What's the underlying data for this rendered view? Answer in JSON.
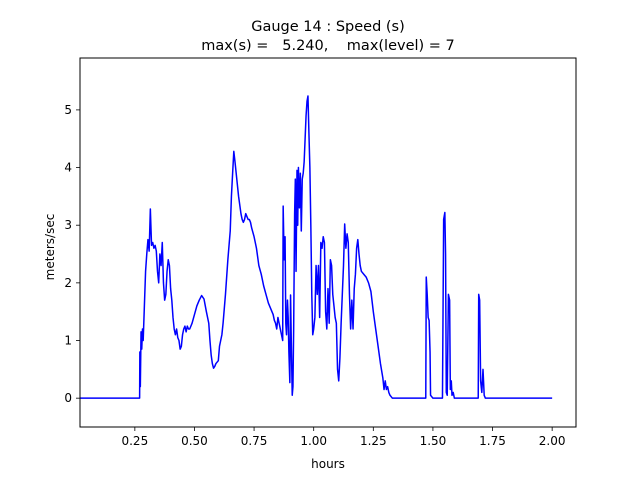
{
  "chart_data": {
    "type": "line",
    "title_line1": "Gauge 14 : Speed (s)",
    "title_line2": "max(s) =   5.240,    max(level) = 7",
    "xlabel": "hours",
    "ylabel": "meters/sec",
    "xlim": [
      0.02,
      2.1
    ],
    "ylim": [
      -0.5,
      5.9
    ],
    "x_ticks": [
      0.25,
      0.5,
      0.75,
      1.0,
      1.25,
      1.5,
      1.75,
      2.0
    ],
    "x_tick_labels": [
      "0.25",
      "0.50",
      "0.75",
      "1.00",
      "1.25",
      "1.50",
      "1.75",
      "2.00"
    ],
    "y_ticks": [
      0,
      1,
      2,
      3,
      4,
      5
    ],
    "y_tick_labels": [
      "0",
      "1",
      "2",
      "3",
      "4",
      "5"
    ],
    "grid": false,
    "line_color": "#0000ff",
    "series": [
      {
        "points": [
          [
            0.02,
            0
          ],
          [
            0.27,
            0
          ],
          [
            0.271,
            0.8
          ],
          [
            0.273,
            0.2
          ],
          [
            0.276,
            1.15
          ],
          [
            0.279,
            0.85
          ],
          [
            0.282,
            1.2
          ],
          [
            0.285,
            1.0
          ],
          [
            0.29,
            1.6
          ],
          [
            0.295,
            2.2
          ],
          [
            0.3,
            2.5
          ],
          [
            0.305,
            2.75
          ],
          [
            0.31,
            2.55
          ],
          [
            0.315,
            3.28
          ],
          [
            0.32,
            2.65
          ],
          [
            0.325,
            2.7
          ],
          [
            0.33,
            2.6
          ],
          [
            0.335,
            2.65
          ],
          [
            0.34,
            2.55
          ],
          [
            0.345,
            2.2
          ],
          [
            0.35,
            2.0
          ],
          [
            0.355,
            2.5
          ],
          [
            0.36,
            2.3
          ],
          [
            0.365,
            2.7
          ],
          [
            0.37,
            2.0
          ],
          [
            0.375,
            1.7
          ],
          [
            0.38,
            1.8
          ],
          [
            0.385,
            2.2
          ],
          [
            0.39,
            2.4
          ],
          [
            0.395,
            2.3
          ],
          [
            0.4,
            1.9
          ],
          [
            0.405,
            1.7
          ],
          [
            0.41,
            1.4
          ],
          [
            0.415,
            1.2
          ],
          [
            0.42,
            1.1
          ],
          [
            0.425,
            1.2
          ],
          [
            0.43,
            1.05
          ],
          [
            0.435,
            1.0
          ],
          [
            0.44,
            0.85
          ],
          [
            0.445,
            0.9
          ],
          [
            0.45,
            1.1
          ],
          [
            0.455,
            1.2
          ],
          [
            0.46,
            1.25
          ],
          [
            0.465,
            1.15
          ],
          [
            0.47,
            1.25
          ],
          [
            0.475,
            1.2
          ],
          [
            0.48,
            1.2
          ],
          [
            0.485,
            1.25
          ],
          [
            0.49,
            1.3
          ],
          [
            0.5,
            1.45
          ],
          [
            0.51,
            1.6
          ],
          [
            0.52,
            1.7
          ],
          [
            0.53,
            1.78
          ],
          [
            0.54,
            1.72
          ],
          [
            0.55,
            1.5
          ],
          [
            0.56,
            1.3
          ],
          [
            0.565,
            1.0
          ],
          [
            0.57,
            0.75
          ],
          [
            0.575,
            0.6
          ],
          [
            0.58,
            0.52
          ],
          [
            0.585,
            0.55
          ],
          [
            0.59,
            0.6
          ],
          [
            0.6,
            0.65
          ],
          [
            0.605,
            0.9
          ],
          [
            0.61,
            1.0
          ],
          [
            0.615,
            1.1
          ],
          [
            0.62,
            1.3
          ],
          [
            0.63,
            1.8
          ],
          [
            0.64,
            2.4
          ],
          [
            0.65,
            2.9
          ],
          [
            0.655,
            3.5
          ],
          [
            0.66,
            3.9
          ],
          [
            0.665,
            4.28
          ],
          [
            0.67,
            4.1
          ],
          [
            0.675,
            3.9
          ],
          [
            0.68,
            3.7
          ],
          [
            0.685,
            3.5
          ],
          [
            0.69,
            3.35
          ],
          [
            0.695,
            3.2
          ],
          [
            0.7,
            3.1
          ],
          [
            0.705,
            3.05
          ],
          [
            0.71,
            3.1
          ],
          [
            0.715,
            3.2
          ],
          [
            0.72,
            3.15
          ],
          [
            0.725,
            3.1
          ],
          [
            0.73,
            3.1
          ],
          [
            0.735,
            3.05
          ],
          [
            0.74,
            2.95
          ],
          [
            0.75,
            2.8
          ],
          [
            0.76,
            2.6
          ],
          [
            0.77,
            2.3
          ],
          [
            0.78,
            2.15
          ],
          [
            0.79,
            1.95
          ],
          [
            0.8,
            1.8
          ],
          [
            0.81,
            1.65
          ],
          [
            0.82,
            1.55
          ],
          [
            0.83,
            1.45
          ],
          [
            0.835,
            1.35
          ],
          [
            0.84,
            1.3
          ],
          [
            0.845,
            1.2
          ],
          [
            0.85,
            1.4
          ],
          [
            0.855,
            1.3
          ],
          [
            0.86,
            1.2
          ],
          [
            0.865,
            1.1
          ],
          [
            0.87,
            1.0
          ],
          [
            0.872,
            3.33
          ],
          [
            0.876,
            2.4
          ],
          [
            0.88,
            2.8
          ],
          [
            0.883,
            1.3
          ],
          [
            0.886,
            1.1
          ],
          [
            0.89,
            1.7
          ],
          [
            0.893,
            1.4
          ],
          [
            0.896,
            0.8
          ],
          [
            0.9,
            0.27
          ],
          [
            0.903,
            1.79
          ],
          [
            0.906,
            1.0
          ],
          [
            0.91,
            0.05
          ],
          [
            0.913,
            0.2
          ],
          [
            0.916,
            1.2
          ],
          [
            0.92,
            3.2
          ],
          [
            0.923,
            3.8
          ],
          [
            0.926,
            2.2
          ],
          [
            0.93,
            3.95
          ],
          [
            0.933,
            3.0
          ],
          [
            0.936,
            4.0
          ],
          [
            0.94,
            3.3
          ],
          [
            0.944,
            3.9
          ],
          [
            0.948,
            2.9
          ],
          [
            0.952,
            3.8
          ],
          [
            0.956,
            3.9
          ],
          [
            0.96,
            4.1
          ],
          [
            0.964,
            4.5
          ],
          [
            0.968,
            4.9
          ],
          [
            0.972,
            5.15
          ],
          [
            0.976,
            5.24
          ],
          [
            0.98,
            4.6
          ],
          [
            0.984,
            4.0
          ],
          [
            0.988,
            3.0
          ],
          [
            0.992,
            1.8
          ],
          [
            0.996,
            1.1
          ],
          [
            1.0,
            1.2
          ],
          [
            1.005,
            1.4
          ],
          [
            1.01,
            2.3
          ],
          [
            1.015,
            1.8
          ],
          [
            1.02,
            2.3
          ],
          [
            1.025,
            1.4
          ],
          [
            1.03,
            2.7
          ],
          [
            1.035,
            2.6
          ],
          [
            1.04,
            2.8
          ],
          [
            1.045,
            2.7
          ],
          [
            1.05,
            1.5
          ],
          [
            1.055,
            1.2
          ],
          [
            1.06,
            1.9
          ],
          [
            1.065,
            1.3
          ],
          [
            1.07,
            2.4
          ],
          [
            1.075,
            2.3
          ],
          [
            1.08,
            1.8
          ],
          [
            1.085,
            1.6
          ],
          [
            1.09,
            1.4
          ],
          [
            1.095,
            1.3
          ],
          [
            1.1,
            0.5
          ],
          [
            1.105,
            0.3
          ],
          [
            1.11,
            0.7
          ],
          [
            1.115,
            1.3
          ],
          [
            1.12,
            1.8
          ],
          [
            1.125,
            2.3
          ],
          [
            1.13,
            3.02
          ],
          [
            1.135,
            2.6
          ],
          [
            1.14,
            2.85
          ],
          [
            1.145,
            2.7
          ],
          [
            1.15,
            1.8
          ],
          [
            1.155,
            1.2
          ],
          [
            1.16,
            1.7
          ],
          [
            1.165,
            1.2
          ],
          [
            1.17,
            1.9
          ],
          [
            1.175,
            2.15
          ],
          [
            1.18,
            2.6
          ],
          [
            1.185,
            2.75
          ],
          [
            1.19,
            2.5
          ],
          [
            1.195,
            2.3
          ],
          [
            1.2,
            2.2
          ],
          [
            1.21,
            2.15
          ],
          [
            1.22,
            2.1
          ],
          [
            1.23,
            2.0
          ],
          [
            1.24,
            1.85
          ],
          [
            1.25,
            1.5
          ],
          [
            1.26,
            1.2
          ],
          [
            1.27,
            0.9
          ],
          [
            1.28,
            0.6
          ],
          [
            1.29,
            0.35
          ],
          [
            1.295,
            0.15
          ],
          [
            1.3,
            0.3
          ],
          [
            1.305,
            0.15
          ],
          [
            1.31,
            0.2
          ],
          [
            1.315,
            0.1
          ],
          [
            1.32,
            0.05
          ],
          [
            1.33,
            0
          ],
          [
            1.46,
            0
          ],
          [
            1.47,
            0
          ],
          [
            1.472,
            2.1
          ],
          [
            1.476,
            1.8
          ],
          [
            1.48,
            1.4
          ],
          [
            1.484,
            1.35
          ],
          [
            1.488,
            0.8
          ],
          [
            1.49,
            0.05
          ],
          [
            1.5,
            0
          ],
          [
            1.54,
            0
          ],
          [
            1.545,
            3.1
          ],
          [
            1.55,
            3.22
          ],
          [
            1.553,
            2.5
          ],
          [
            1.556,
            0.1
          ],
          [
            1.56,
            0.05
          ],
          [
            1.565,
            1.8
          ],
          [
            1.57,
            1.7
          ],
          [
            1.573,
            0.15
          ],
          [
            1.577,
            0.3
          ],
          [
            1.58,
            0.05
          ],
          [
            1.585,
            0.1
          ],
          [
            1.59,
            0
          ],
          [
            1.69,
            0
          ],
          [
            1.692,
            1.8
          ],
          [
            1.696,
            1.7
          ],
          [
            1.7,
            0.3
          ],
          [
            1.705,
            0.1
          ],
          [
            1.71,
            0.5
          ],
          [
            1.715,
            0.05
          ],
          [
            1.72,
            0
          ],
          [
            2.0,
            0
          ]
        ]
      }
    ]
  }
}
